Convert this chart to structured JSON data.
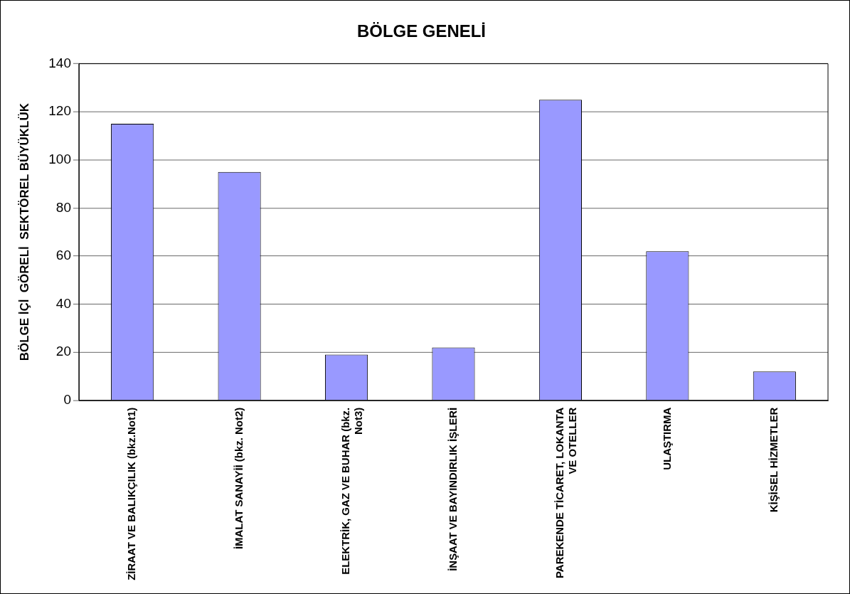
{
  "chart_data": {
    "type": "bar",
    "title": "BÖLGE GENELİ",
    "ylabel": "BÖLGE İÇİ  GÖRELİ  SEKTÖREL BÜYÜKLÜK",
    "categories": [
      "ZİRAAT VE BALIKÇILIK (bkz.Not1)",
      "İMALAT SANAYİİ (bkz. Not2)",
      "ELEKTRİK, GAZ VE BUHAR (bkz. Not3)",
      "İNŞAAT VE BAYINDIRLIK İŞLERİ",
      "PAREKENDE TİCARET, LOKANTA VE OTELLER",
      "ULAŞTIRMA",
      "KİŞİSEL HİZMETLER"
    ],
    "values": [
      115,
      95,
      19,
      22,
      125,
      62,
      12
    ],
    "color": "#9999ff",
    "ylim": [
      0,
      140
    ],
    "yticks": [
      0,
      20,
      40,
      60,
      80,
      100,
      120,
      140
    ],
    "grid": "y",
    "legend": false
  }
}
